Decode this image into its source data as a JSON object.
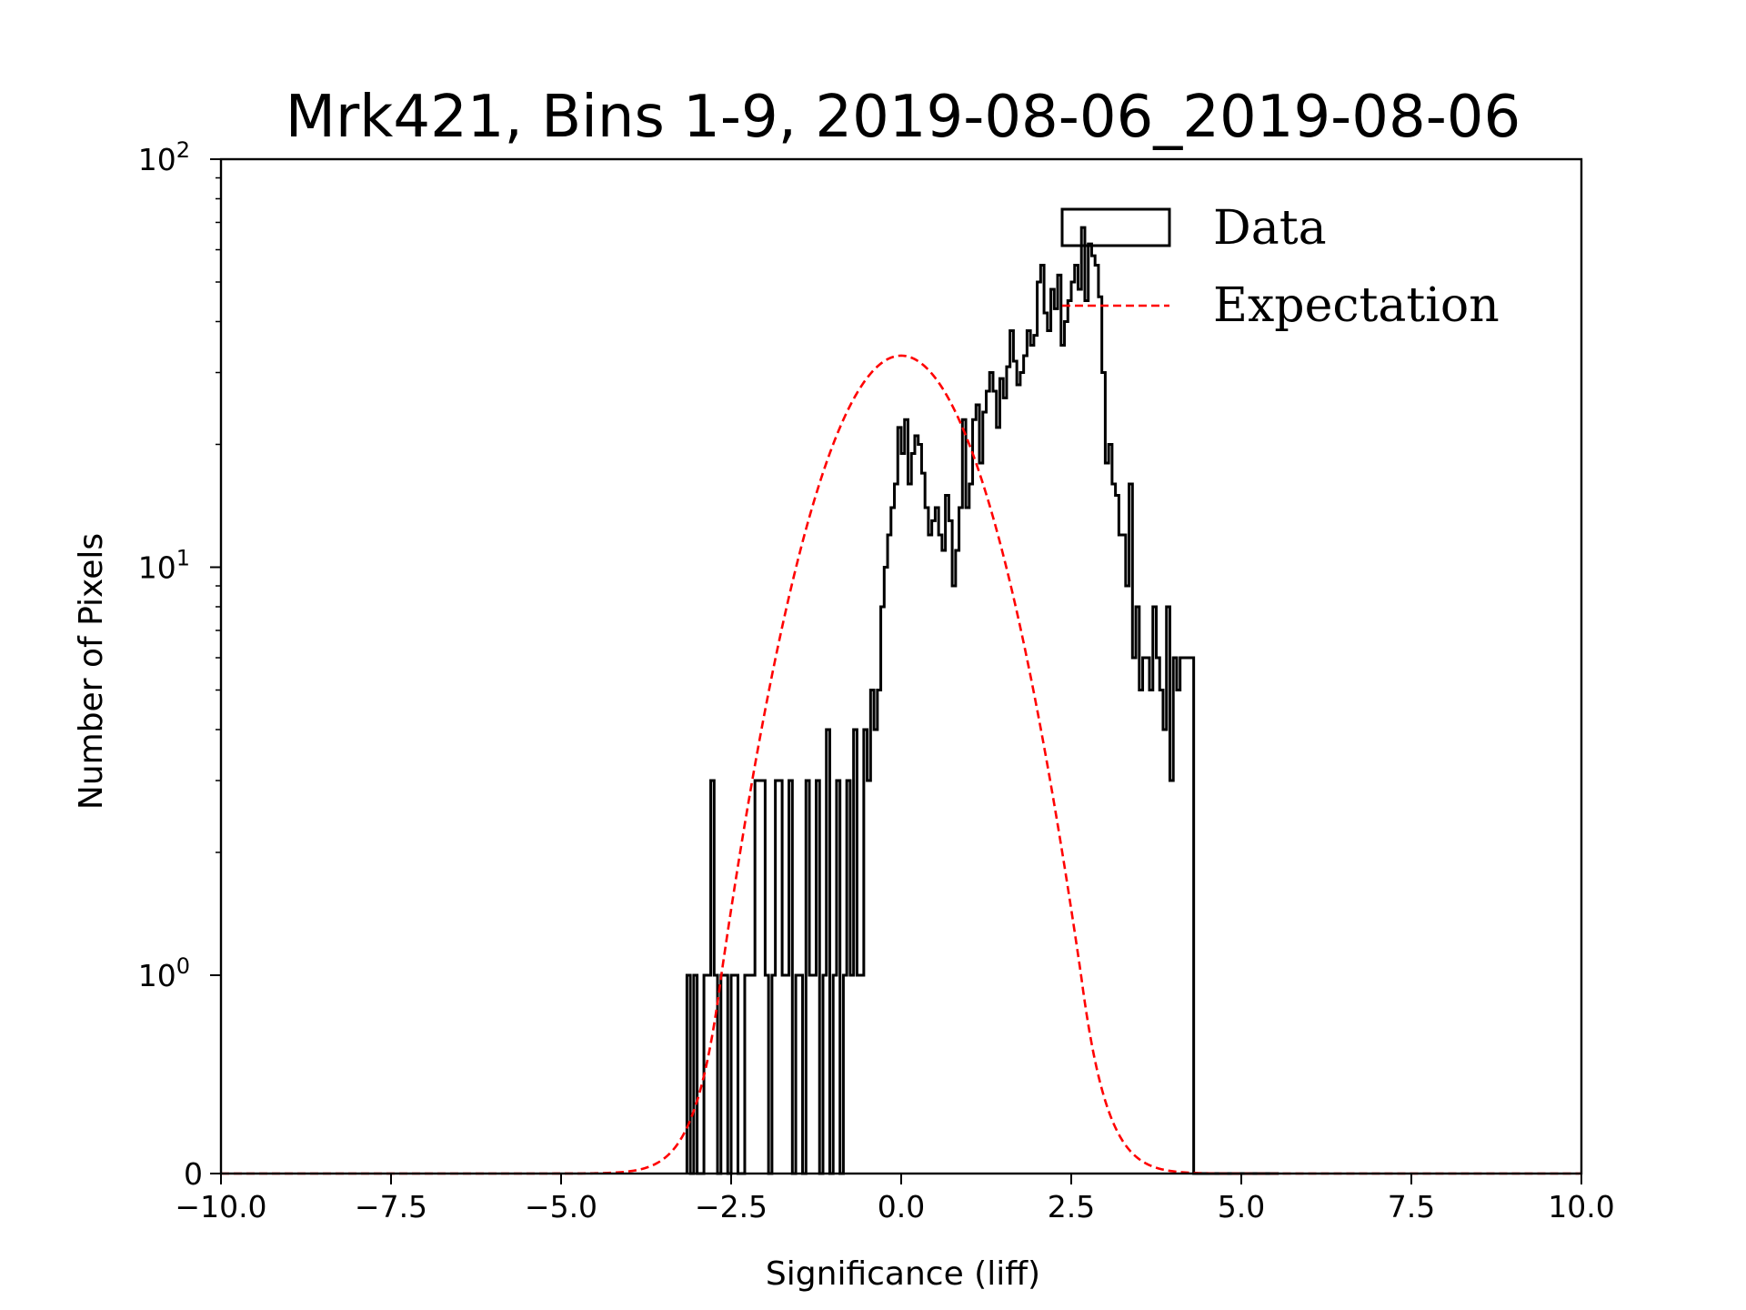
{
  "chart_data": {
    "type": "histogram",
    "title": "Mrk421, Bins 1-9, 2019-08-06_2019-08-06",
    "xlabel": "Significance (liff)",
    "ylabel": "Number of Pixels",
    "xlim": [
      -10,
      10
    ],
    "yscale": "symlog",
    "ylim": [
      0,
      100
    ],
    "xticks": [
      -10,
      -7.5,
      -5,
      -2.5,
      0,
      2.5,
      5,
      7.5,
      10
    ],
    "xtick_labels": [
      "−10.0",
      "−7.5",
      "−5.0",
      "−2.5",
      "0.0",
      "2.5",
      "5.0",
      "7.5",
      "10.0"
    ],
    "yticks": [
      {
        "value": 0,
        "base": "0",
        "exp": ""
      },
      {
        "value": 1,
        "base": "10",
        "exp": "0"
      },
      {
        "value": 10,
        "base": "10",
        "exp": "1"
      },
      {
        "value": 100,
        "base": "10",
        "exp": "2"
      }
    ],
    "legend": {
      "position": "top-right",
      "entries": [
        {
          "label": "Data",
          "style": "step",
          "color": "#000000"
        },
        {
          "label": "Expectation",
          "style": "dashed",
          "color": "#ff0000"
        }
      ]
    },
    "series": [
      {
        "name": "Data",
        "color": "#000000",
        "bin_width": 0.05,
        "first_edge": -3.15,
        "counts": [
          1,
          0,
          1,
          0,
          0,
          1,
          1,
          3,
          1,
          0,
          1,
          1,
          0,
          1,
          1,
          0,
          0,
          1,
          1,
          1,
          3,
          3,
          3,
          1,
          0,
          1,
          3,
          3,
          1,
          1,
          3,
          0,
          1,
          1,
          0,
          3,
          1,
          1,
          3,
          0,
          1,
          4,
          0,
          1,
          3,
          0,
          1,
          3,
          1,
          4,
          1,
          1,
          4,
          3,
          5,
          4,
          5,
          8,
          10,
          12,
          14,
          16,
          22,
          19,
          23,
          16,
          19,
          21,
          20,
          17,
          14,
          12,
          13,
          14,
          12,
          11,
          15,
          13,
          9,
          11,
          14,
          23,
          14,
          16,
          23,
          25,
          18,
          24,
          27,
          30,
          27,
          22,
          29,
          26,
          31,
          38,
          32,
          28,
          30,
          33,
          38,
          35,
          37,
          50,
          55,
          42,
          38,
          48,
          43,
          52,
          35,
          40,
          45,
          50,
          55,
          48,
          68,
          45,
          62,
          58,
          55,
          46,
          30,
          18,
          20,
          16,
          15,
          12,
          12,
          9,
          16,
          6,
          8,
          5,
          6,
          6,
          5,
          8,
          6,
          5,
          4,
          8,
          3,
          6,
          5,
          6,
          6,
          6,
          6,
          0,
          0,
          0,
          0,
          0,
          0,
          0,
          0,
          0,
          0,
          0,
          0,
          0,
          0,
          0,
          0,
          0,
          0,
          0,
          0,
          0,
          0,
          0,
          0,
          0
        ]
      },
      {
        "name": "Expectation",
        "color": "#ff0000",
        "style": "dashed",
        "model": "gaussian",
        "amplitude": 33,
        "mean": 0,
        "sigma": 1
      }
    ]
  }
}
